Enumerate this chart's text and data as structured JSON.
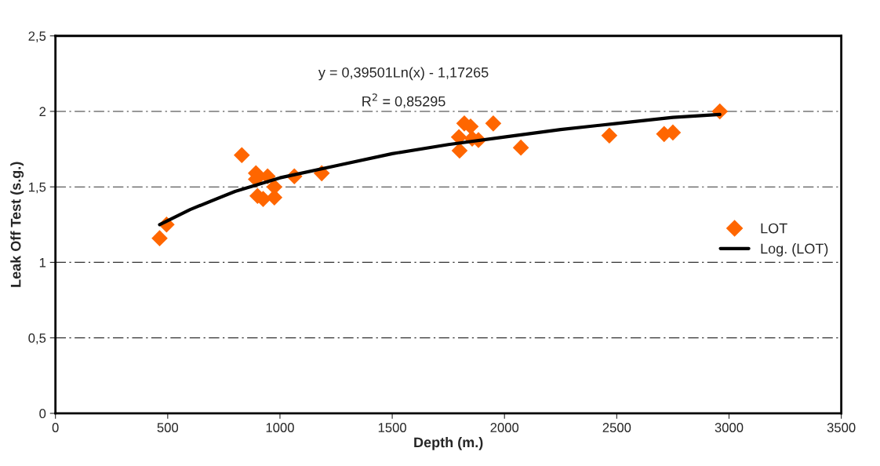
{
  "chart_data": {
    "type": "scatter",
    "xlabel": "Depth (m.)",
    "ylabel": "Leak Off Test (s.g.)",
    "xlim": [
      0,
      3500
    ],
    "xticks": [
      0,
      500,
      1000,
      1500,
      2000,
      2500,
      3000,
      3500
    ],
    "ylim": [
      0,
      2.5
    ],
    "yticks": [
      {
        "value": 0,
        "label": "0"
      },
      {
        "value": 0.5,
        "label": "0,5"
      },
      {
        "value": 1,
        "label": "1"
      },
      {
        "value": 1.5,
        "label": "1,5"
      },
      {
        "value": 2,
        "label": "2"
      },
      {
        "value": 2.5,
        "label": "2,5"
      }
    ],
    "grid": "y",
    "legend": "right",
    "annotations": [
      "y = 0,39501Ln(x) - 1,17265",
      "R$^{2}$ = 0,85295"
    ],
    "series": [
      {
        "name": "LOT",
        "color": "#ff6600",
        "marker": "diamond",
        "x": [
          464,
          495,
          830,
          893,
          893,
          900,
          925,
          945,
          975,
          975,
          1064,
          1186,
          1797,
          1800,
          1821,
          1849,
          1856,
          1884,
          1950,
          2073,
          2467,
          2711,
          2750,
          2959
        ],
        "values": [
          1.16,
          1.25,
          1.71,
          1.59,
          1.55,
          1.44,
          1.42,
          1.57,
          1.5,
          1.43,
          1.57,
          1.59,
          1.83,
          1.74,
          1.92,
          1.9,
          1.82,
          1.81,
          1.92,
          1.76,
          1.84,
          1.85,
          1.86,
          2.0
        ]
      },
      {
        "name": "Log. (LOT)",
        "type": "line",
        "color": "#000000",
        "marker": "none",
        "line_style": "solid",
        "x": [
          464,
          600,
          800,
          1000,
          1250,
          1500,
          1750,
          2000,
          2250,
          2500,
          2750,
          2959
        ],
        "values": [
          1.25,
          1.35,
          1.47,
          1.56,
          1.64,
          1.72,
          1.78,
          1.83,
          1.88,
          1.92,
          1.96,
          1.98
        ]
      }
    ]
  }
}
